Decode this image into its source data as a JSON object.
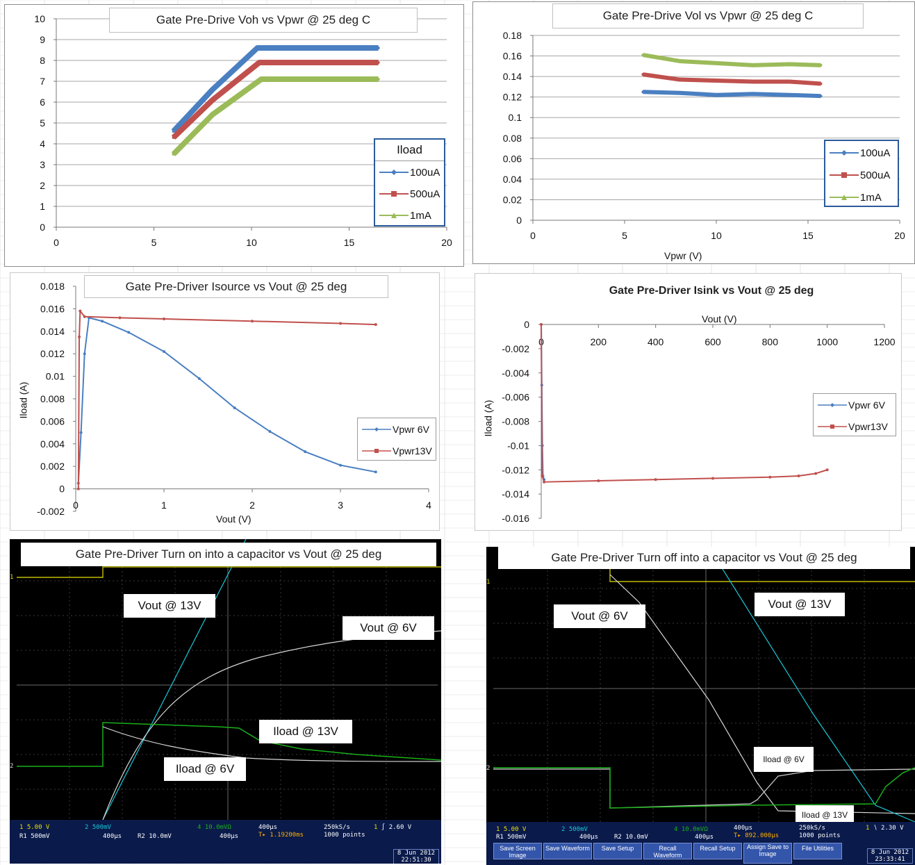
{
  "colors": {
    "blue": "#4a7fc1",
    "red": "#c0504d",
    "green": "#9bbb59",
    "scope_yellow": "#e8e000",
    "scope_cyan": "#19c8d8",
    "scope_white": "#d8d8d8",
    "scope_green": "#1ab01a"
  },
  "chart_data": [
    {
      "id": "voh",
      "type": "line",
      "title": "Gate Pre-Drive Voh vs Vpwr  @ 25 deg C",
      "xlabel": "",
      "ylabel": "",
      "xlim": [
        0,
        20
      ],
      "ylim": [
        0,
        10
      ],
      "xticks": [
        "0",
        "5",
        "10",
        "15",
        "20"
      ],
      "yticks": [
        "0",
        "1",
        "2",
        "3",
        "4",
        "5",
        "6",
        "7",
        "8",
        "9",
        "10"
      ],
      "grid": true,
      "legend_title": "Iload",
      "legend_position": "right",
      "series": [
        {
          "name": "100uA",
          "color": "#4a7fc1",
          "x": [
            6,
            8,
            10.3,
            16.5
          ],
          "y": [
            4.6,
            6.6,
            8.6,
            8.6
          ]
        },
        {
          "name": "500uA",
          "color": "#c0504d",
          "x": [
            6,
            8,
            10.4,
            16.5
          ],
          "y": [
            4.3,
            6.1,
            7.9,
            7.9
          ]
        },
        {
          "name": "1mA",
          "color": "#9bbb59",
          "x": [
            6,
            8,
            10.5,
            16.5
          ],
          "y": [
            3.5,
            5.4,
            7.1,
            7.1
          ]
        }
      ]
    },
    {
      "id": "vol",
      "type": "line",
      "title": "Gate Pre-Drive Vol vs Vpwr  @ 25 deg C",
      "xlabel": "Vpwr  (V)",
      "ylabel": "",
      "xlim": [
        0,
        20
      ],
      "ylim": [
        0,
        0.18
      ],
      "xticks": [
        "0",
        "5",
        "10",
        "15",
        "20"
      ],
      "yticks": [
        "0",
        "0.02",
        "0.04",
        "0.06",
        "0.08",
        "0.1",
        "0.12",
        "0.14",
        "0.16",
        "0.18"
      ],
      "grid": true,
      "legend_position": "right",
      "series": [
        {
          "name": "100uA",
          "color": "#4a7fc1",
          "x": [
            6,
            8,
            10,
            12,
            14,
            15.7
          ],
          "y": [
            0.125,
            0.124,
            0.122,
            0.123,
            0.122,
            0.121
          ]
        },
        {
          "name": "500uA",
          "color": "#c0504d",
          "x": [
            6,
            8,
            10,
            12,
            14,
            15.7
          ],
          "y": [
            0.142,
            0.137,
            0.136,
            0.135,
            0.135,
            0.133
          ]
        },
        {
          "name": "1mA",
          "color": "#9bbb59",
          "x": [
            6,
            8,
            10,
            12,
            14,
            15.7
          ],
          "y": [
            0.161,
            0.155,
            0.153,
            0.151,
            0.152,
            0.151
          ]
        }
      ]
    },
    {
      "id": "isource",
      "type": "line",
      "title": "Gate Pre-Driver Isource vs Vout  @ 25 deg",
      "xlabel": "Vout (V)",
      "ylabel": "Iload (A)",
      "xlim": [
        0,
        4
      ],
      "ylim": [
        -0.002,
        0.018
      ],
      "xticks": [
        "0",
        "1",
        "2",
        "3",
        "4"
      ],
      "yticks": [
        "-0.002",
        "0",
        "0.002",
        "0.004",
        "0.006",
        "0.008",
        "0.01",
        "0.012",
        "0.014",
        "0.016",
        "0.018"
      ],
      "grid": false,
      "legend_position": "right",
      "series": [
        {
          "name": "Vpwr 6V",
          "color": "#4a7fc1",
          "x": [
            0.03,
            0.06,
            0.1,
            0.15,
            0.3,
            0.6,
            1.0,
            1.4,
            1.8,
            2.2,
            2.6,
            3.0,
            3.4
          ],
          "y": [
            0.0005,
            0.005,
            0.012,
            0.0152,
            0.0149,
            0.0139,
            0.0122,
            0.0098,
            0.0072,
            0.0051,
            0.0033,
            0.0021,
            0.0015
          ]
        },
        {
          "name": "Vpwr13V",
          "color": "#c0504d",
          "x": [
            0.03,
            0.04,
            0.05,
            0.1,
            0.5,
            1.0,
            2.0,
            3.0,
            3.4
          ],
          "y": [
            0.0,
            0.0135,
            0.0158,
            0.0153,
            0.0152,
            0.0151,
            0.0149,
            0.0147,
            0.0146
          ]
        }
      ]
    },
    {
      "id": "isink",
      "type": "line",
      "title": "Gate Pre-Driver Isink vs Vout  @ 25 deg",
      "xlabel": "Vout (V)",
      "ylabel": "Iload (A)",
      "xlim": [
        0,
        1200
      ],
      "ylim": [
        -0.016,
        0
      ],
      "xticks": [
        "0",
        "200",
        "400",
        "600",
        "800",
        "1000",
        "1200"
      ],
      "yticks": [
        "0",
        "-0.002",
        "-0.004",
        "-0.006",
        "-0.008",
        "-0.01",
        "-0.012",
        "-0.014",
        "-0.016"
      ],
      "grid": false,
      "legend_position": "right",
      "series": [
        {
          "name": "Vpwr 6V",
          "color": "#4a7fc1",
          "x": [
            0,
            2,
            4,
            6,
            10
          ],
          "y": [
            0,
            -0.005,
            -0.01,
            -0.0125,
            -0.0128
          ]
        },
        {
          "name": "Vpwr13V",
          "color": "#c0504d",
          "x": [
            0,
            3,
            10,
            200,
            400,
            600,
            800,
            900,
            960,
            1000
          ],
          "y": [
            0,
            -0.0125,
            -0.013,
            -0.0129,
            -0.0128,
            -0.0127,
            -0.0126,
            -0.0125,
            -0.0123,
            -0.012
          ]
        }
      ]
    }
  ],
  "scope_on": {
    "title": "Gate Pre-Driver Turn on into a capacitor  vs Vout  @ 25 deg",
    "notes": [
      "Vout @ 13V",
      "Vout @ 6V",
      "Iload @ 13V",
      "Iload @ 6V"
    ],
    "status": {
      "ch1": "5.00 V",
      "ch2": "500mV",
      "ch4": "10.0mVΩ",
      "r1": "500mV",
      "r1_time": "400µs",
      "r2": "10.0mV",
      "r2_time": "400µs",
      "timebase": "400µs",
      "delay": "1.19200ms",
      "rate": "250kS/s",
      "points": "1000 points",
      "trigger": "2.60 V",
      "date": "8 Jun  2012",
      "time": "22:51:30"
    }
  },
  "scope_off": {
    "title": "Gate Pre-Driver Turn off into a capacitor  vs Vout  @ 25 deg",
    "notes": [
      "Vout @ 6V",
      "Vout @ 13V",
      "Iload @ 6V",
      "Iload @ 13V"
    ],
    "status": {
      "ch1": "5.00 V",
      "ch2": "500mV",
      "ch4": "10.0mVΩ",
      "r1": "500mV",
      "r1_time": "400µs",
      "r2": "10.0mV",
      "r2_time": "400µs",
      "timebase": "400µs",
      "delay": "892.000µs",
      "rate": "250kS/s",
      "points": "1000 points",
      "trigger": "2.30 V",
      "date": "8 Jun  2012",
      "time": "23:33:41"
    },
    "buttons": [
      "Save Screen Image",
      "Save Waveform",
      "Save Setup",
      "Recall Waveform",
      "Recall Setup",
      "Assign Save to Image",
      "File Utilities"
    ]
  }
}
